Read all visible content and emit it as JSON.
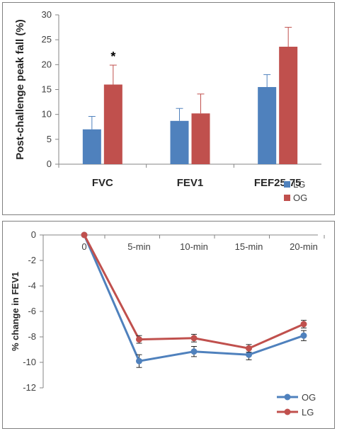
{
  "chart_data": [
    {
      "type": "bar",
      "title": "",
      "ylabel": "Post-challenge peak fall (%)",
      "xlabel": "",
      "ylim": [
        0,
        30
      ],
      "yticks": [
        0,
        5,
        10,
        15,
        20,
        25,
        30
      ],
      "categories": [
        "FVC",
        "FEV1",
        "FEF25-75"
      ],
      "series": [
        {
          "name": "LG",
          "color": "#4f81bd",
          "values": [
            7.0,
            8.7,
            15.5
          ],
          "errors": [
            2.6,
            2.5,
            2.5
          ]
        },
        {
          "name": "OG",
          "color": "#c0504d",
          "values": [
            16.0,
            10.2,
            23.6
          ],
          "errors": [
            3.9,
            3.9,
            3.9
          ]
        }
      ],
      "annotations": [
        {
          "text": "*",
          "category": "FVC",
          "series": "OG"
        }
      ],
      "legend_position": "bottom-right",
      "grid": false
    },
    {
      "type": "line",
      "title": "",
      "ylabel": "% change in FEV1",
      "xlabel": "",
      "ylim": [
        -12,
        0
      ],
      "yticks": [
        0,
        -2,
        -4,
        -6,
        -8,
        -10,
        -12
      ],
      "categories": [
        "0",
        "5-min",
        "10-min",
        "15-min",
        "20-min"
      ],
      "series": [
        {
          "name": "OG",
          "color": "#4f81bd",
          "values": [
            0,
            -9.9,
            -9.15,
            -9.4,
            -7.9
          ],
          "errors": [
            0,
            0.5,
            0.4,
            0.4,
            0.4
          ]
        },
        {
          "name": "LG",
          "color": "#c0504d",
          "values": [
            0,
            -8.2,
            -8.1,
            -8.9,
            -7.0
          ],
          "errors": [
            0,
            0.3,
            0.3,
            0.3,
            0.3
          ]
        }
      ],
      "legend_position": "bottom-right",
      "grid": false
    }
  ]
}
